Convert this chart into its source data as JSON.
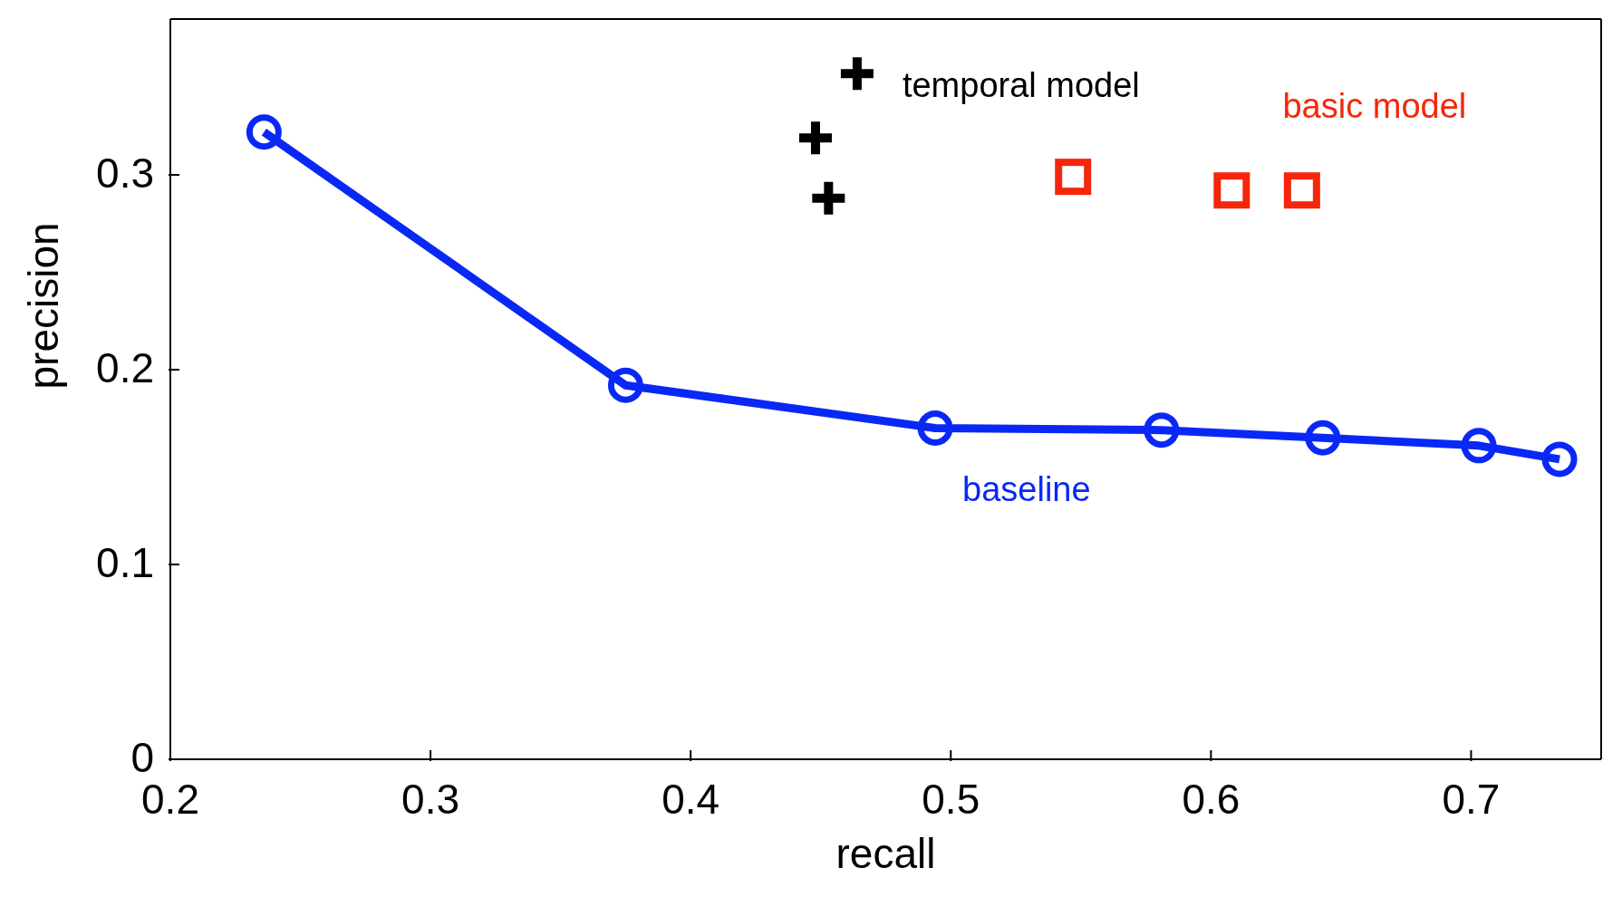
{
  "chart_data": {
    "type": "line",
    "xlabel": "recall",
    "ylabel": "precision",
    "xlim": [
      0.2,
      0.75
    ],
    "ylim": [
      0,
      0.38
    ],
    "xticks": [
      0.2,
      0.3,
      0.4,
      0.5,
      0.6,
      0.7
    ],
    "yticks": [
      0,
      0.1,
      0.2,
      0.3
    ],
    "grid": false,
    "legend": false,
    "series": [
      {
        "name": "baseline",
        "marker": "circle",
        "color": "#0a28f5",
        "x": [
          0.236,
          0.375,
          0.494,
          0.581,
          0.643,
          0.703,
          0.734
        ],
        "values": [
          0.322,
          0.192,
          0.17,
          0.169,
          0.165,
          0.161,
          0.154
        ]
      },
      {
        "name": "temporal model",
        "type": "scatter",
        "marker": "cross",
        "color": "#000000",
        "x": [
          0.464,
          0.448,
          0.453
        ],
        "values": [
          0.352,
          0.319,
          0.288
        ]
      },
      {
        "name": "basic model",
        "type": "scatter",
        "marker": "square",
        "color": "#f5260a",
        "x": [
          0.547,
          0.608,
          0.635
        ],
        "values": [
          0.299,
          0.292,
          0.292
        ]
      }
    ]
  }
}
